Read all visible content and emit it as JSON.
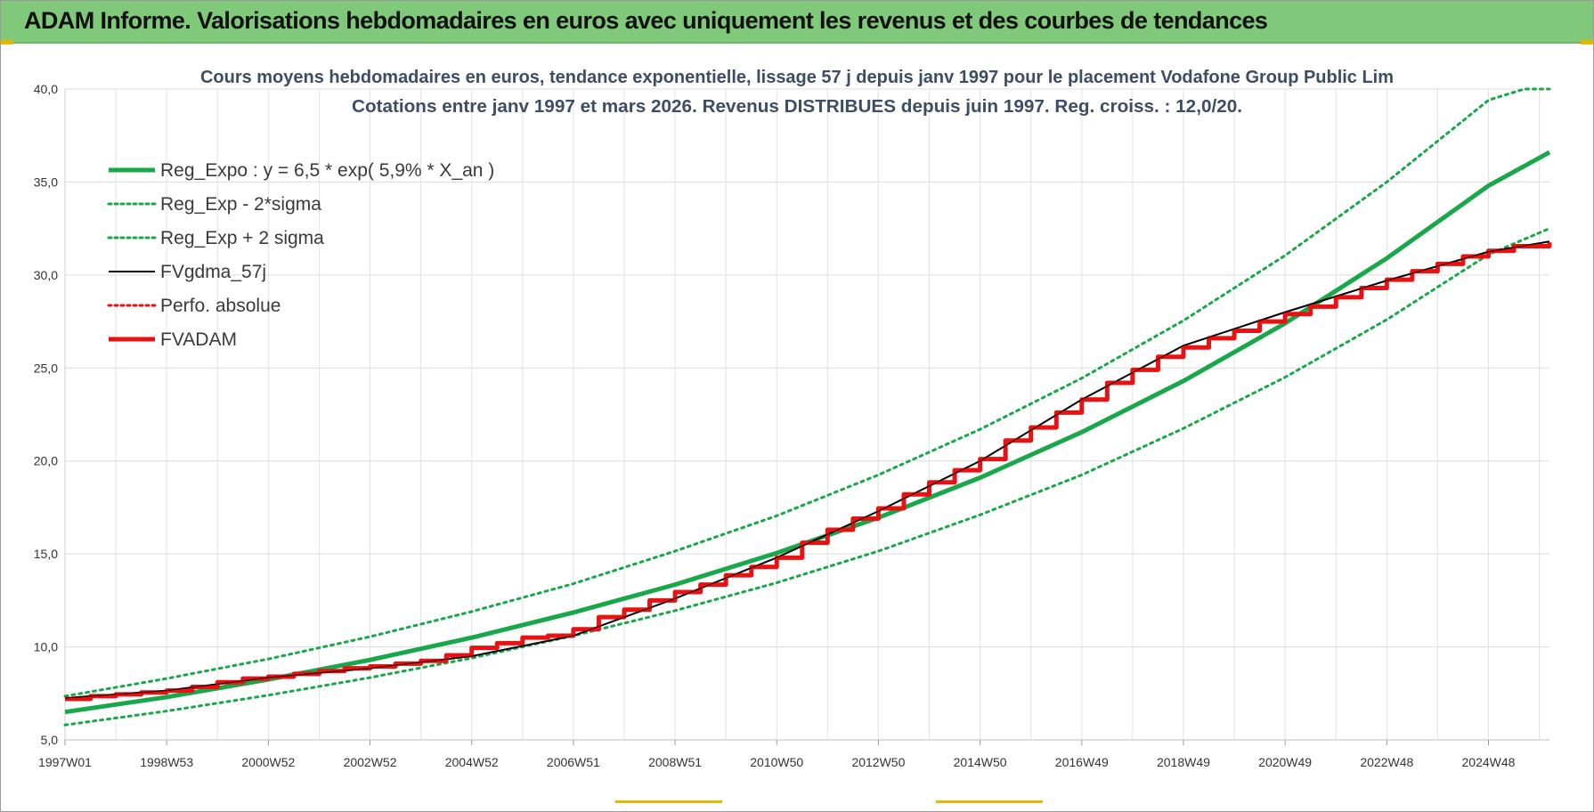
{
  "header": {
    "title": "ADAM Informe. Valorisations hebdomadaires en euros avec uniquement les revenus et des courbes de tendances"
  },
  "colors": {
    "header_bg": "#80c87a",
    "trend_green": "#18a84a",
    "adam_red": "#e81212",
    "smoothed_black": "#000000",
    "corner_marks": "#e6b800"
  },
  "chart_data": {
    "type": "line",
    "title_lines": [
      "Cours moyens hebdomadaires en euros, tendance exponentielle, lissage 57 j depuis janv 1997 pour le placement Vodafone Group Public Lim",
      "Cotations entre janv 1997 et mars 2026. Revenus DISTRIBUES depuis juin 1997. Reg. croiss. : 12,0/20."
    ],
    "xlabel": "",
    "ylabel": "",
    "ylim": [
      5,
      40
    ],
    "grid": true,
    "legend_position": "top-left",
    "y_ticks": [
      "5,0",
      "10,0",
      "15,0",
      "20,0",
      "25,0",
      "30,0",
      "35,0",
      "40,0"
    ],
    "x_ticks": [
      {
        "year": 1997.0,
        "label": "1997W01"
      },
      {
        "year": 1999.0,
        "label": "1998W53"
      },
      {
        "year": 2001.0,
        "label": "2000W52"
      },
      {
        "year": 2003.0,
        "label": "2002W52"
      },
      {
        "year": 2005.0,
        "label": "2004W52"
      },
      {
        "year": 2007.0,
        "label": "2006W51"
      },
      {
        "year": 2009.0,
        "label": "2008W51"
      },
      {
        "year": 2011.0,
        "label": "2010W50"
      },
      {
        "year": 2013.0,
        "label": "2012W50"
      },
      {
        "year": 2015.0,
        "label": "2014W50"
      },
      {
        "year": 2017.0,
        "label": "2016W49"
      },
      {
        "year": 2019.0,
        "label": "2018W49"
      },
      {
        "year": 2021.0,
        "label": "2020W49"
      },
      {
        "year": 2023.0,
        "label": "2022W48"
      },
      {
        "year": 2025.0,
        "label": "2024W48"
      }
    ],
    "x_range_years": [
      1997.0,
      2026.2
    ],
    "series": [
      {
        "name": "Reg_Expo : y = 6,5 * exp( 5,9% *  X_an )",
        "style": "solid-thick",
        "color": "#18a84a",
        "x": [
          1997,
          1999,
          2001,
          2003,
          2005,
          2007,
          2009,
          2011,
          2013,
          2015,
          2017,
          2019,
          2021,
          2023,
          2025,
          2026.2
        ],
        "y": [
          6.5,
          7.3,
          8.25,
          9.3,
          10.5,
          11.85,
          13.35,
          15.05,
          16.95,
          19.1,
          21.55,
          24.3,
          27.4,
          30.9,
          34.8,
          36.6
        ]
      },
      {
        "name": "Reg_Exp - 2*sigma",
        "style": "dotted",
        "color": "#18a84a",
        "x": [
          1997,
          1999,
          2001,
          2003,
          2005,
          2007,
          2009,
          2011,
          2013,
          2015,
          2017,
          2019,
          2021,
          2023,
          2025,
          2026.2
        ],
        "y": [
          5.8,
          6.55,
          7.4,
          8.35,
          9.4,
          10.6,
          11.95,
          13.45,
          15.15,
          17.1,
          19.25,
          21.75,
          24.5,
          27.6,
          31.1,
          32.5
        ]
      },
      {
        "name": "Reg_Exp + 2 sigma",
        "style": "dotted",
        "color": "#18a84a",
        "x": [
          1997,
          1999,
          2001,
          2003,
          2005,
          2007,
          2009,
          2011,
          2013,
          2015,
          2017,
          2019,
          2021,
          2023,
          2025,
          2025.7,
          2026.2
        ],
        "y": [
          7.35,
          8.3,
          9.35,
          10.55,
          11.9,
          13.4,
          15.15,
          17.05,
          19.25,
          21.7,
          24.45,
          27.55,
          31.05,
          35.0,
          39.4,
          40.0,
          40.0
        ]
      },
      {
        "name": "FVgdma_57j",
        "style": "solid-thin",
        "color": "#000000",
        "x": [
          1997,
          1999,
          2001,
          2003,
          2005,
          2007,
          2009,
          2011,
          2013,
          2015,
          2017,
          2019,
          2021,
          2023,
          2025,
          2026.2
        ],
        "y": [
          7.25,
          7.65,
          8.35,
          8.85,
          9.5,
          10.6,
          12.6,
          14.8,
          17.3,
          20.0,
          23.3,
          26.2,
          28.0,
          29.7,
          31.25,
          31.8
        ]
      },
      {
        "name": "Perfo. absolue",
        "style": "dotted",
        "color": "#e81212",
        "x": [],
        "y": []
      },
      {
        "name": "FVADAM",
        "style": "solid-thick-steps",
        "color": "#e81212",
        "x": [
          1997,
          1997.5,
          1998,
          1998.5,
          1999,
          1999.5,
          2000,
          2000.5,
          2001,
          2001.5,
          2002,
          2002.5,
          2003,
          2003.5,
          2004,
          2004.5,
          2005,
          2005.5,
          2006,
          2006.5,
          2007,
          2007.5,
          2008,
          2008.5,
          2009,
          2009.5,
          2010,
          2010.5,
          2011,
          2011.5,
          2012,
          2012.5,
          2013,
          2013.5,
          2014,
          2014.5,
          2015,
          2015.5,
          2016,
          2016.5,
          2017,
          2017.5,
          2018,
          2018.5,
          2019,
          2019.5,
          2020,
          2020.5,
          2021,
          2021.5,
          2022,
          2022.5,
          2023,
          2023.5,
          2024,
          2024.5,
          2025,
          2025.5,
          2026.2
        ],
        "y": [
          7.2,
          7.35,
          7.45,
          7.55,
          7.65,
          7.85,
          8.1,
          8.3,
          8.4,
          8.55,
          8.7,
          8.85,
          8.95,
          9.1,
          9.25,
          9.55,
          9.95,
          10.2,
          10.5,
          10.6,
          10.95,
          11.6,
          12.0,
          12.5,
          12.95,
          13.35,
          13.85,
          14.3,
          14.8,
          15.6,
          16.3,
          16.9,
          17.45,
          18.2,
          18.85,
          19.5,
          20.1,
          21.1,
          21.8,
          22.6,
          23.3,
          24.2,
          24.9,
          25.6,
          26.1,
          26.6,
          27.0,
          27.5,
          27.9,
          28.3,
          28.8,
          29.3,
          29.75,
          30.2,
          30.6,
          31.0,
          31.3,
          31.55,
          31.75
        ]
      }
    ]
  }
}
